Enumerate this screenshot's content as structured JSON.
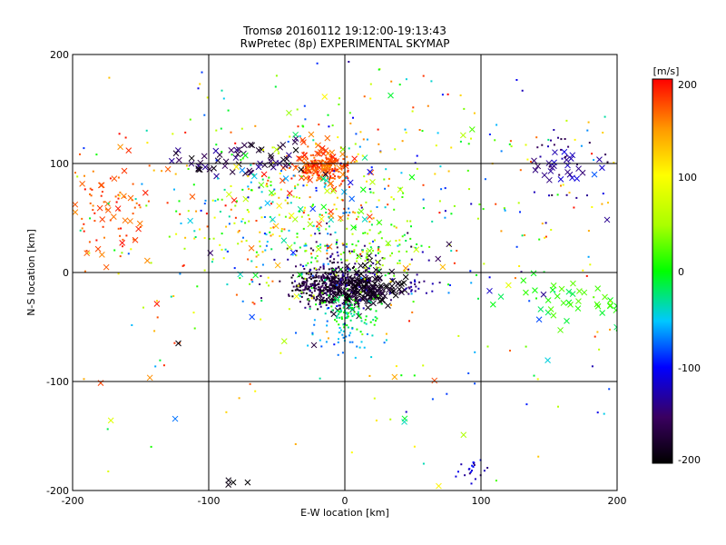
{
  "chart_data": {
    "type": "scatter",
    "title": "Tromsø 20160112 19:12:00-19:13:43",
    "subtitle": "RwPretec (8p) EXPERIMENTAL SKYMAP",
    "xlabel": "E-W location [km]",
    "ylabel": "N-S location [km]",
    "xlim": [
      -200,
      200
    ],
    "ylim": [
      -200,
      200
    ],
    "x_ticks": [
      "-200",
      "-100",
      "0",
      "100",
      "200"
    ],
    "y_ticks": [
      "-200",
      "-100",
      "0",
      "100",
      "200"
    ],
    "grid": true,
    "colorbar": {
      "label": "[m/s]",
      "range": [
        -200,
        200
      ],
      "ticks": [
        "200",
        "100",
        "0",
        "-100",
        "-200"
      ],
      "placement": "right"
    },
    "point_markers": [
      "dot",
      "x"
    ],
    "clusters": [
      {
        "center": [
          -12,
          -12
        ],
        "spread": [
          12,
          9
        ],
        "count": 420,
        "velocity": [
          -200,
          -150
        ],
        "marker": "dot"
      },
      {
        "center": [
          15,
          -15
        ],
        "spread": [
          12,
          9
        ],
        "count": 160,
        "velocity": [
          -200,
          -170
        ],
        "marker": "x"
      },
      {
        "center": [
          0,
          0
        ],
        "spread": [
          25,
          18
        ],
        "count": 120,
        "velocity": [
          -170,
          -120
        ],
        "marker": "dot"
      },
      {
        "center": [
          -15,
          97
        ],
        "spread": [
          10,
          7
        ],
        "count": 170,
        "velocity": [
          150,
          200
        ],
        "marker": "dot"
      },
      {
        "center": [
          -18,
          100
        ],
        "spread": [
          12,
          9
        ],
        "count": 60,
        "velocity": [
          150,
          200
        ],
        "marker": "x"
      },
      {
        "center": [
          -70,
          105
        ],
        "spread": [
          25,
          8
        ],
        "count": 60,
        "velocity": [
          -200,
          -130
        ],
        "marker": "x"
      },
      {
        "center": [
          5,
          -35
        ],
        "spread": [
          10,
          8
        ],
        "count": 90,
        "velocity": [
          -40,
          20
        ],
        "marker": "dot"
      },
      {
        "center": [
          15,
          20
        ],
        "spread": [
          20,
          15
        ],
        "count": 90,
        "velocity": [
          -20,
          80
        ],
        "marker": "dot"
      },
      {
        "center": [
          -40,
          50
        ],
        "spread": [
          40,
          35
        ],
        "count": 200,
        "velocity": [
          -100,
          200
        ],
        "marker": "dot"
      },
      {
        "center": [
          -30,
          60
        ],
        "spread": [
          35,
          30
        ],
        "count": 60,
        "velocity": [
          -100,
          200
        ],
        "marker": "x"
      },
      {
        "center": [
          -175,
          60
        ],
        "spread": [
          20,
          30
        ],
        "count": 70,
        "velocity": [
          150,
          200
        ],
        "marker": "dot"
      },
      {
        "center": [
          -170,
          60
        ],
        "spread": [
          20,
          30
        ],
        "count": 35,
        "velocity": [
          150,
          200
        ],
        "marker": "x"
      },
      {
        "center": [
          0,
          -60
        ],
        "spread": [
          15,
          10
        ],
        "count": 40,
        "velocity": [
          -80,
          -40
        ],
        "marker": "dot"
      },
      {
        "center": [
          55,
          -12
        ],
        "spread": [
          8,
          5
        ],
        "count": 20,
        "velocity": [
          -150,
          -110
        ],
        "marker": "dot"
      },
      {
        "center": [
          160,
          95
        ],
        "spread": [
          12,
          8
        ],
        "count": 25,
        "velocity": [
          -150,
          -110
        ],
        "marker": "x"
      },
      {
        "center": [
          160,
          110
        ],
        "spread": [
          15,
          15
        ],
        "count": 25,
        "velocity": [
          -170,
          -120
        ],
        "marker": "dot"
      },
      {
        "center": [
          165,
          -25
        ],
        "spread": [
          25,
          12
        ],
        "count": 40,
        "velocity": [
          -20,
          30
        ],
        "marker": "x"
      },
      {
        "center": [
          95,
          -180
        ],
        "spread": [
          8,
          6
        ],
        "count": 20,
        "velocity": [
          -150,
          -100
        ],
        "marker": "dot"
      },
      {
        "center": [
          -80,
          -192
        ],
        "spread": [
          12,
          3
        ],
        "count": 4,
        "velocity": [
          -200,
          -190
        ],
        "marker": "x"
      },
      {
        "center": [
          0,
          80
        ],
        "spread": [
          110,
          60
        ],
        "count": 220,
        "velocity": [
          -120,
          200
        ],
        "marker": "dot"
      },
      {
        "center": [
          100,
          20
        ],
        "spread": [
          90,
          120
        ],
        "count": 160,
        "velocity": [
          -150,
          200
        ],
        "marker": "dot"
      },
      {
        "center": [
          -100,
          0
        ],
        "spread": [
          90,
          110
        ],
        "count": 120,
        "velocity": [
          -100,
          200
        ],
        "marker": "dot"
      },
      {
        "center": [
          0,
          0
        ],
        "spread": [
          150,
          150
        ],
        "count": 60,
        "velocity": [
          -200,
          200
        ],
        "marker": "x"
      }
    ]
  }
}
